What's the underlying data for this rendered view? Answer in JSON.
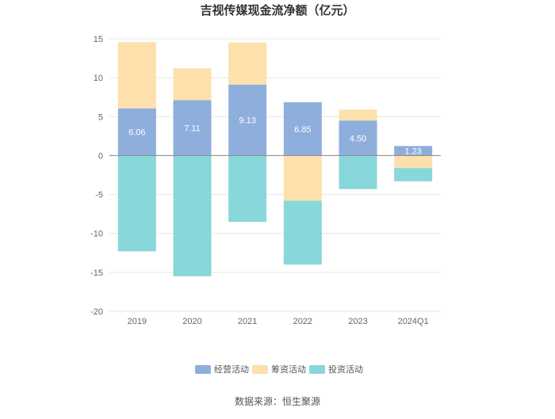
{
  "chart_data": {
    "type": "bar",
    "stacked": true,
    "title": "吉视传媒现金流净额（亿元）",
    "categories": [
      "2019",
      "2020",
      "2021",
      "2022",
      "2023",
      "2024Q1"
    ],
    "series": [
      {
        "name": "经营活动",
        "color": "#8eaedc",
        "values": [
          6.06,
          7.11,
          9.13,
          6.85,
          4.5,
          1.23
        ],
        "labels": [
          "6.06",
          "7.11",
          "9.13",
          "6.85",
          "4.50",
          "1.23"
        ]
      },
      {
        "name": "筹资活动",
        "color": "#fde0ac",
        "values": [
          8.5,
          4.1,
          5.4,
          -5.8,
          1.4,
          -1.6
        ]
      },
      {
        "name": "投资活动",
        "color": "#88d7da",
        "values": [
          -12.3,
          -15.5,
          -8.5,
          -8.2,
          -4.3,
          -1.7
        ]
      }
    ],
    "ylim": [
      -20,
      15
    ],
    "yticks": [
      15,
      10,
      5,
      0,
      -5,
      -10,
      -15,
      -20
    ],
    "grid": true,
    "legend_position": "bottom"
  },
  "source": "数据来源：恒生聚源"
}
